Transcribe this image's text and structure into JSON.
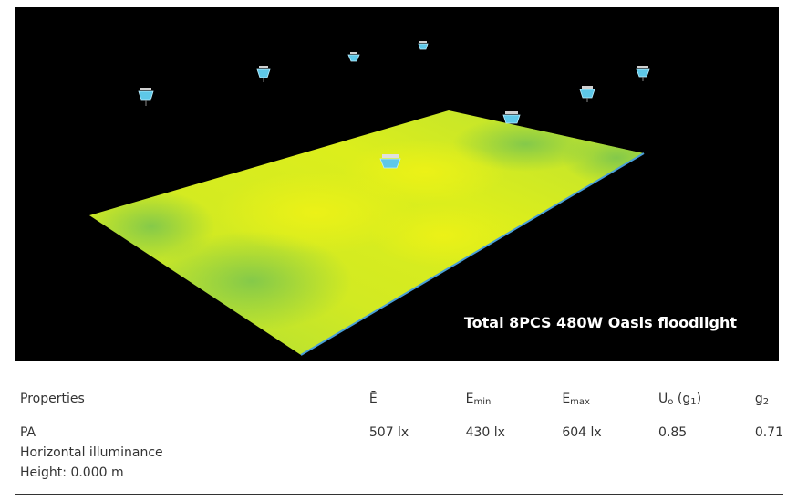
{
  "render": {
    "caption": "Total 8PCS 480W Oasis floodlight",
    "luminaire_icon": "floodlight-icon",
    "luminaire_count": 8,
    "colors": {
      "background": "#000000",
      "field_yellow": "#d8ec1c",
      "field_green": "#7cc64e",
      "luminaire": "#5ec8e8"
    }
  },
  "table": {
    "headers": {
      "properties": "Properties",
      "e_avg": "Ē",
      "e_min_base": "E",
      "e_min_sub": "min",
      "e_max_base": "E",
      "e_max_sub": "max",
      "uo_base": "U",
      "uo_sub": "o",
      "uo_rest": " (g",
      "uo_sub2": "1",
      "uo_close": ")",
      "g2_base": "g",
      "g2_sub": "2"
    },
    "row": {
      "name": "PA",
      "type": "Horizontal illuminance",
      "height": "Height: 0.000 m",
      "e_avg": "507 lx",
      "e_min": "430 lx",
      "e_max": "604 lx",
      "uo": "0.85",
      "g2": "0.71"
    }
  }
}
